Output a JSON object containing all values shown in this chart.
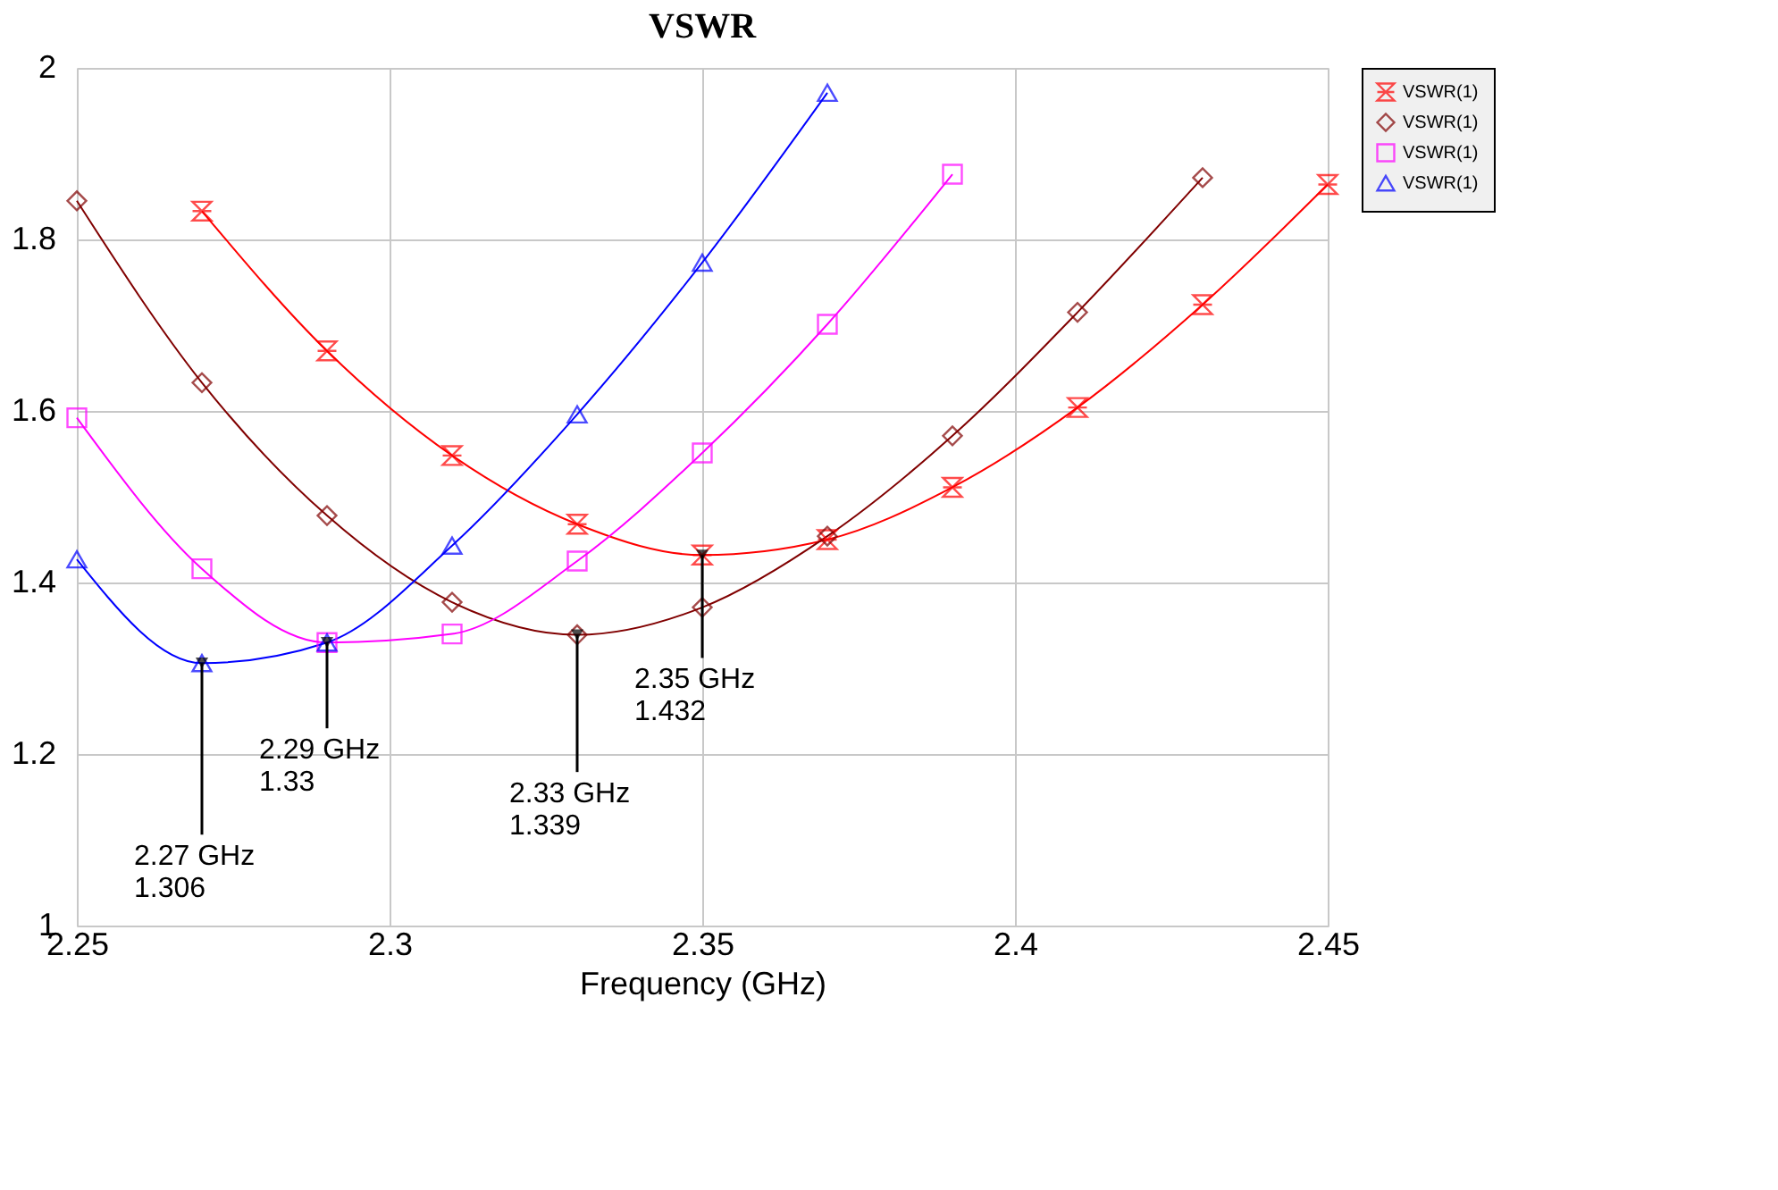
{
  "chart_data": {
    "type": "line",
    "title": "VSWR",
    "xlabel": "Frequency (GHz)",
    "xlim": [
      2.25,
      2.45
    ],
    "xticks": [
      2.25,
      2.3,
      2.35,
      2.4,
      2.45
    ],
    "ylim": [
      1,
      2
    ],
    "yticks": [
      1,
      1.2,
      1.4,
      1.6,
      1.8,
      2
    ],
    "grid": true,
    "legend": "right",
    "series": [
      {
        "name": "VSWR(1)",
        "color": "#ff0000",
        "marker": "cross",
        "x": [
          2.27,
          2.29,
          2.31,
          2.33,
          2.35,
          2.37,
          2.39,
          2.41,
          2.43,
          2.45
        ],
        "values": [
          1.833,
          1.67,
          1.548,
          1.468,
          1.432,
          1.45,
          1.511,
          1.604,
          1.724,
          1.864
        ]
      },
      {
        "name": "VSWR(1)",
        "color": "#800000",
        "marker": "diamond",
        "x": [
          2.25,
          2.27,
          2.29,
          2.31,
          2.33,
          2.35,
          2.37,
          2.39,
          2.41,
          2.43
        ],
        "values": [
          1.845,
          1.633,
          1.478,
          1.377,
          1.339,
          1.371,
          1.454,
          1.571,
          1.715,
          1.872
        ]
      },
      {
        "name": "VSWR(1)",
        "color": "#ff00ff",
        "marker": "square",
        "x": [
          2.25,
          2.27,
          2.29,
          2.31,
          2.33,
          2.35,
          2.37,
          2.39
        ],
        "values": [
          1.592,
          1.416,
          1.33,
          1.34,
          1.425,
          1.551,
          1.701,
          1.876
        ]
      },
      {
        "name": "VSWR(1)",
        "color": "#0000ff",
        "marker": "triangle",
        "x": [
          2.25,
          2.27,
          2.29,
          2.31,
          2.33,
          2.35,
          2.37
        ],
        "values": [
          1.427,
          1.306,
          1.33,
          1.443,
          1.596,
          1.773,
          1.971
        ]
      }
    ],
    "annotations": [
      {
        "text": "2.27 GHz\n1.306",
        "x": 2.27,
        "y": 1.306
      },
      {
        "text": "2.29 GHz\n1.33",
        "x": 2.29,
        "y": 1.33
      },
      {
        "text": "2.33 GHz\n1.339",
        "x": 2.33,
        "y": 1.339
      },
      {
        "text": "2.35 GHz\n1.432",
        "x": 2.35,
        "y": 1.432
      }
    ]
  }
}
